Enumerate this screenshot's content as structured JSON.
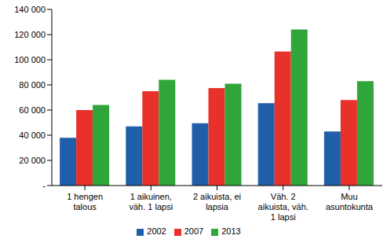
{
  "chart_data": {
    "type": "bar",
    "categories": [
      "1 hengen talous",
      "1 aikuinen, väh. 1 lapsi",
      "2 aikuista, ei lapsia",
      "Väh. 2 aikuista, väh. 1 lapsi",
      "Muu asuntokunta"
    ],
    "series": [
      {
        "name": "2002",
        "color": "#1f5faa",
        "values": [
          38000,
          47000,
          49500,
          65500,
          43000
        ]
      },
      {
        "name": "2007",
        "color": "#e8312b",
        "values": [
          60000,
          75000,
          77500,
          106500,
          68000
        ]
      },
      {
        "name": "2013",
        "color": "#2fa53a",
        "values": [
          64000,
          84000,
          81000,
          124000,
          83000
        ]
      }
    ],
    "ylim": [
      0,
      140000
    ],
    "yticks": [
      {
        "value": 0,
        "label": "-"
      },
      {
        "value": 20000,
        "label": "20 000"
      },
      {
        "value": 40000,
        "label": "40 000"
      },
      {
        "value": 60000,
        "label": "60 000"
      },
      {
        "value": 80000,
        "label": "80 000"
      },
      {
        "value": 100000,
        "label": "100 000"
      },
      {
        "value": 120000,
        "label": "120 000"
      },
      {
        "value": 140000,
        "label": "140 000"
      }
    ],
    "grid": false,
    "legend": "bottom"
  }
}
